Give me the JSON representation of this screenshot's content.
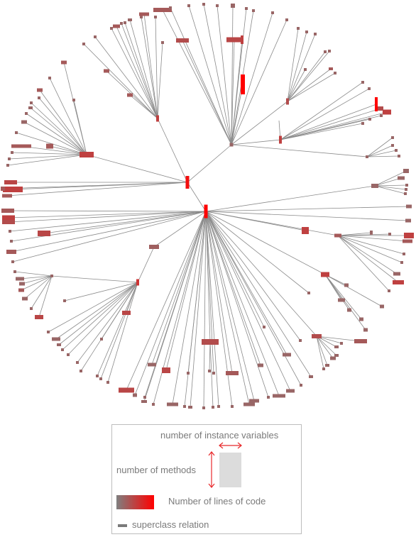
{
  "colors": {
    "edge": "#8a8a8a",
    "node_low": "#7f7f7f",
    "node_high": "#ff0000",
    "arrow": "#e8292b",
    "legend_text": "#7a7a7a",
    "legend_box": "#dcdcdc"
  },
  "legend": {
    "instance_variables": "number of instance variables",
    "methods": "number of methods",
    "lines_of_code": "Number of lines of code",
    "superclass": "superclass relation"
  }
}
